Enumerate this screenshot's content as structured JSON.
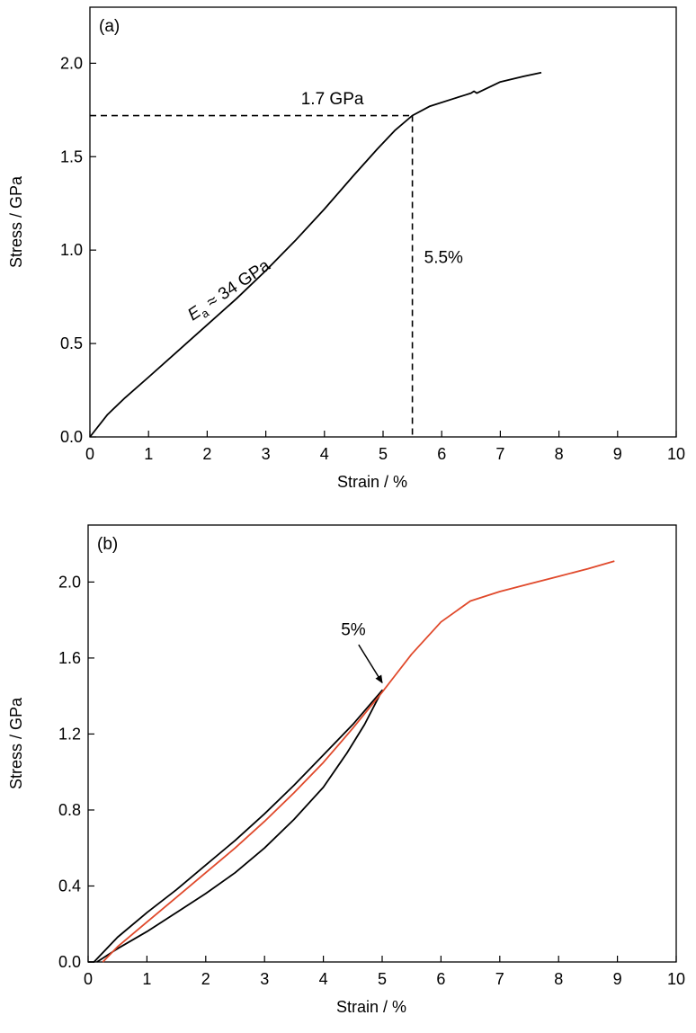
{
  "chart_data": [
    {
      "type": "line",
      "panel_label": "(a)",
      "title": "",
      "xlabel": "Strain / %",
      "ylabel": "Stress / GPa",
      "xlim": [
        0,
        10
      ],
      "ylim": [
        0,
        2.3
      ],
      "xticks": [
        0,
        1,
        2,
        3,
        4,
        5,
        6,
        7,
        8,
        9,
        10
      ],
      "yticks": [
        0.0,
        0.5,
        1.0,
        1.5,
        2.0
      ],
      "ytick_labels": [
        "0.0",
        "0.5",
        "1.0",
        "1.5",
        "2.0"
      ],
      "grid": false,
      "series": [
        {
          "color": "#000000",
          "x": [
            0,
            0.3,
            0.6,
            1.0,
            1.5,
            2.0,
            2.5,
            3.0,
            3.5,
            4.0,
            4.5,
            4.9,
            5.2,
            5.5,
            5.8,
            6.2,
            6.4,
            6.5,
            6.55,
            6.6,
            7.0,
            7.4,
            7.7
          ],
          "y": [
            0,
            0.12,
            0.21,
            0.32,
            0.46,
            0.6,
            0.74,
            0.89,
            1.05,
            1.22,
            1.4,
            1.54,
            1.64,
            1.72,
            1.77,
            1.81,
            1.83,
            1.84,
            1.85,
            1.84,
            1.9,
            1.93,
            1.95
          ]
        }
      ],
      "guides": [
        {
          "style": "dashed",
          "from": [
            0,
            1.72
          ],
          "to": [
            5.5,
            1.72
          ]
        },
        {
          "style": "dashed",
          "from": [
            5.5,
            1.72
          ],
          "to": [
            5.5,
            0
          ]
        }
      ],
      "annotations": [
        {
          "text": "1.7 GPa",
          "x": 3.6,
          "y": 1.78,
          "rotate": 0
        },
        {
          "text": "5.5%",
          "x": 5.7,
          "y": 0.93,
          "rotate": 0
        },
        {
          "text": "E",
          "subscript": "a",
          "rest": " ≈ 34 GPa",
          "x": 1.75,
          "y": 0.62,
          "rotate": -34
        }
      ]
    },
    {
      "type": "line",
      "panel_label": "(b)",
      "title": "",
      "xlabel": "Strain / %",
      "ylabel": "Stress / GPa",
      "xlim": [
        0,
        10
      ],
      "ylim": [
        0,
        2.3
      ],
      "xticks": [
        0,
        1,
        2,
        3,
        4,
        5,
        6,
        7,
        8,
        9,
        10
      ],
      "yticks": [
        0.0,
        0.4,
        0.8,
        1.2,
        1.6,
        2.0
      ],
      "ytick_labels": [
        "0.0",
        "0.4",
        "0.8",
        "1.2",
        "1.6",
        "2.0"
      ],
      "grid": false,
      "series": [
        {
          "color": "#000000",
          "x": [
            0.0,
            0.1,
            0.5,
            1.0,
            1.5,
            2.0,
            2.5,
            3.0,
            3.5,
            4.0,
            4.5,
            5.0,
            4.7,
            4.4,
            4.0,
            3.5,
            3.0,
            2.5,
            2.0,
            1.5,
            1.0,
            0.5,
            0.15
          ],
          "y": [
            0.0,
            0.0,
            0.13,
            0.26,
            0.38,
            0.51,
            0.64,
            0.78,
            0.93,
            1.09,
            1.25,
            1.43,
            1.25,
            1.1,
            0.92,
            0.75,
            0.6,
            0.47,
            0.36,
            0.26,
            0.16,
            0.07,
            0.0
          ]
        },
        {
          "color": "#e0492b",
          "x": [
            0.25,
            0.5,
            1.0,
            1.5,
            2.0,
            2.5,
            3.0,
            3.5,
            4.0,
            4.5,
            5.0,
            5.2,
            5.5,
            6.0,
            6.5,
            7.0,
            7.5,
            8.0,
            8.5,
            8.95
          ],
          "y": [
            0.0,
            0.08,
            0.21,
            0.34,
            0.47,
            0.6,
            0.74,
            0.89,
            1.05,
            1.23,
            1.42,
            1.5,
            1.62,
            1.79,
            1.9,
            1.95,
            1.99,
            2.03,
            2.07,
            2.11
          ]
        }
      ],
      "annotations": [
        {
          "text": "5%",
          "x": 4.3,
          "y": 1.72,
          "rotate": 0,
          "arrow_from": [
            4.6,
            1.67
          ],
          "arrow_to": [
            5.0,
            1.47
          ]
        }
      ]
    }
  ]
}
